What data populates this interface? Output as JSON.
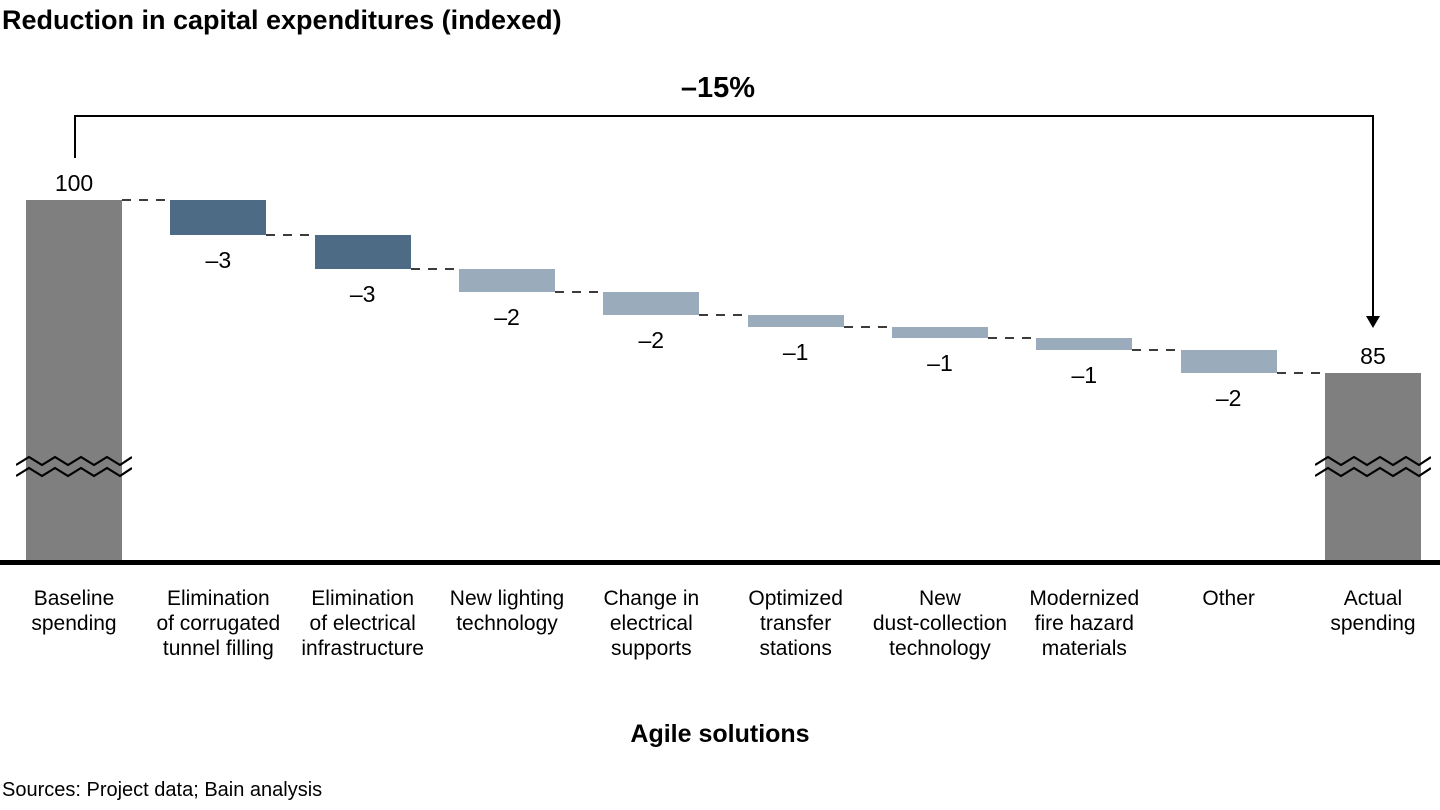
{
  "title": "Reduction in capital expenditures (indexed)",
  "annotation": {
    "total_change_label": "–15%"
  },
  "xlabel": "Agile solutions",
  "sources": "Sources: Project data; Bain analysis",
  "colors": {
    "total_bar": "#7f7f7f",
    "dark_step_bar": "#4e6b86",
    "light_step_bar": "#9aabbb",
    "axis": "#000000",
    "connector": "#3c3c3c"
  },
  "chart_data": {
    "type": "bar",
    "subtype": "waterfall",
    "title": "Reduction in capital expenditures (indexed)",
    "xlabel": "Agile solutions",
    "start_value": 100,
    "end_value": 85,
    "total_change_label": "–15%",
    "grid": false,
    "legend": "none",
    "axis_break_on_total_bars": true,
    "bars": [
      {
        "kind": "total",
        "label_lines": [
          "Baseline",
          "spending"
        ],
        "value": 100,
        "value_label": "100",
        "color": "#7f7f7f"
      },
      {
        "kind": "step",
        "label_lines": [
          "Elimination",
          "of corrugated",
          "tunnel filling"
        ],
        "value": -3,
        "value_label": "–3",
        "color": "#4e6b86"
      },
      {
        "kind": "step",
        "label_lines": [
          "Elimination",
          "of electrical",
          "infrastructure"
        ],
        "value": -3,
        "value_label": "–3",
        "color": "#4e6b86"
      },
      {
        "kind": "step",
        "label_lines": [
          "New lighting",
          "technology"
        ],
        "value": -2,
        "value_label": "–2",
        "color": "#9aabbb"
      },
      {
        "kind": "step",
        "label_lines": [
          "Change in",
          "electrical",
          "supports"
        ],
        "value": -2,
        "value_label": "–2",
        "color": "#9aabbb"
      },
      {
        "kind": "step",
        "label_lines": [
          "Optimized",
          "transfer",
          "stations"
        ],
        "value": -1,
        "value_label": "–1",
        "color": "#9aabbb"
      },
      {
        "kind": "step",
        "label_lines": [
          "New",
          "dust-collection",
          "technology"
        ],
        "value": -1,
        "value_label": "–1",
        "color": "#9aabbb"
      },
      {
        "kind": "step",
        "label_lines": [
          "Modernized",
          "fire hazard",
          "materials"
        ],
        "value": -1,
        "value_label": "–1",
        "color": "#9aabbb"
      },
      {
        "kind": "step",
        "label_lines": [
          "Other"
        ],
        "value": -2,
        "value_label": "–2",
        "color": "#9aabbb"
      },
      {
        "kind": "total",
        "label_lines": [
          "Actual",
          "spending"
        ],
        "value": 85,
        "value_label": "85",
        "color": "#7f7f7f"
      }
    ]
  }
}
